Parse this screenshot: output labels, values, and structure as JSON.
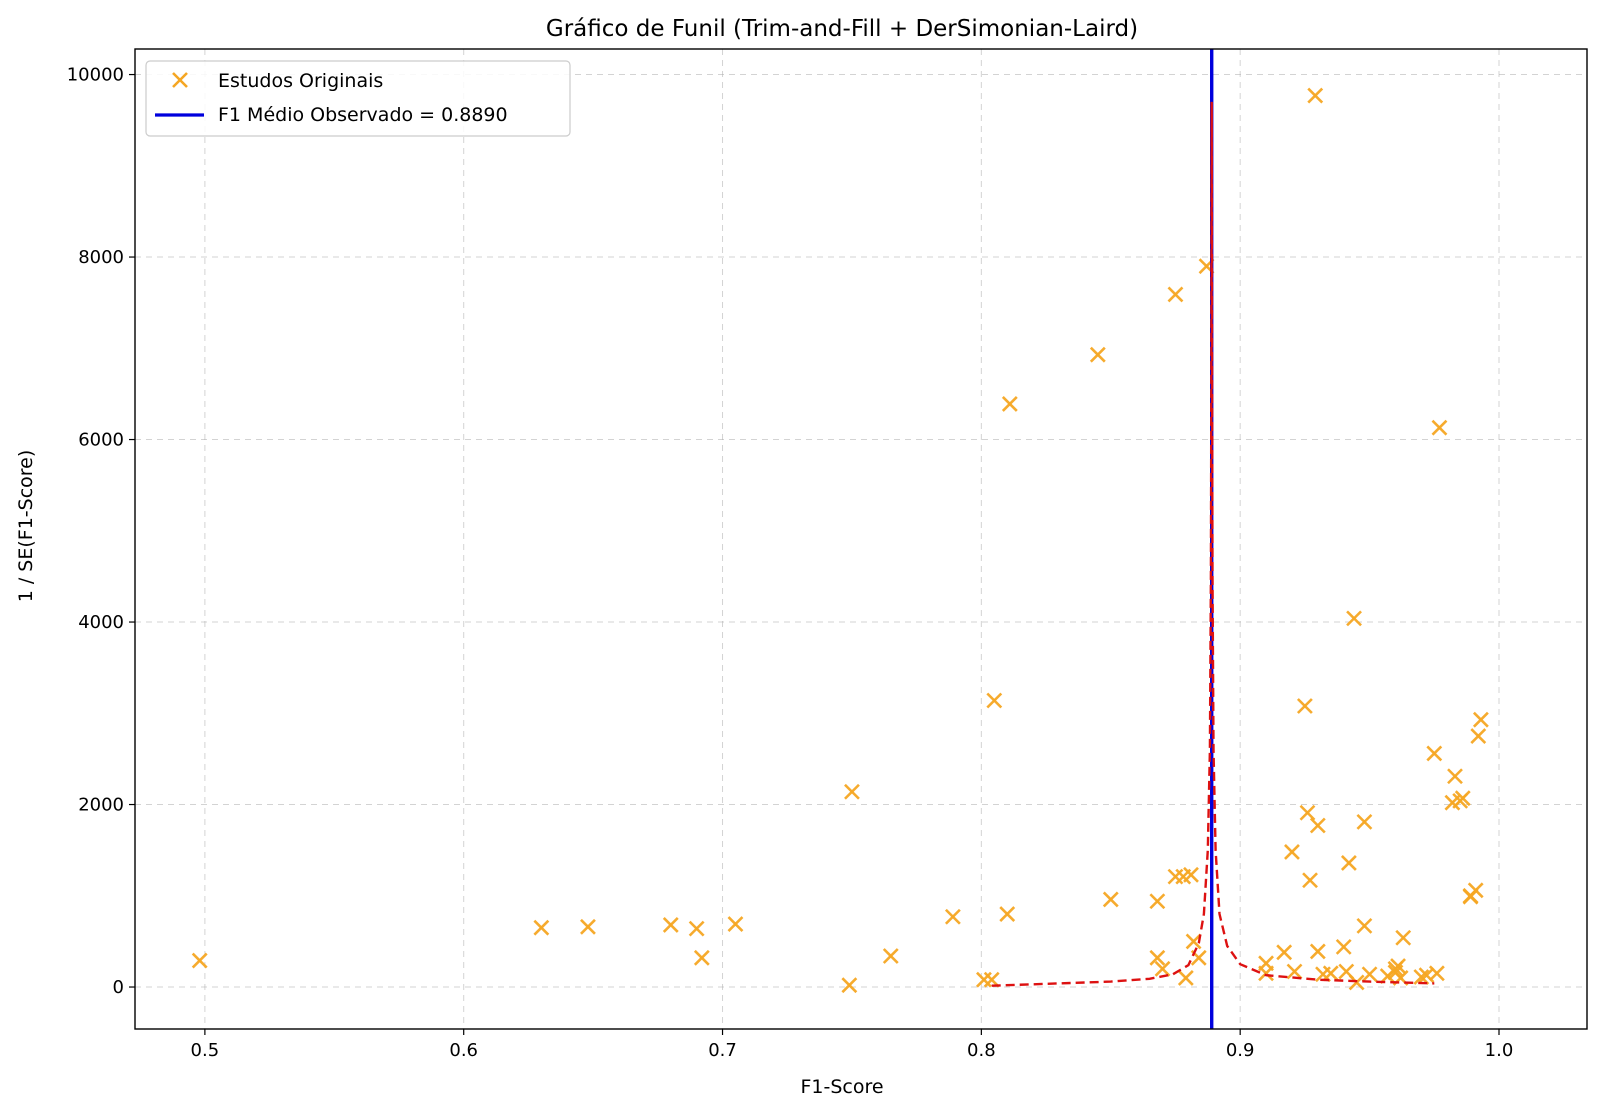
{
  "chart_data": {
    "type": "scatter",
    "title": "Gráfico de Funil (Trim-and-Fill + DerSimonian-Laird)",
    "xlabel": "F1-Score",
    "ylabel": "1 / SE(F1-Score)",
    "xlim": [
      0.473,
      1.034
    ],
    "ylim": [
      -460,
      10280
    ],
    "xticks": [
      0.5,
      0.6,
      0.7,
      0.8,
      0.9,
      1.0
    ],
    "xtick_labels": [
      "0.5",
      "0.6",
      "0.7",
      "0.8",
      "0.9",
      "1.0"
    ],
    "yticks": [
      0,
      2000,
      4000,
      6000,
      8000,
      10000
    ],
    "ytick_labels": [
      "0",
      "2000",
      "4000",
      "6000",
      "8000",
      "10000"
    ],
    "grid": true,
    "legend_position": "top-left",
    "colors": {
      "scatter": "#f5a623",
      "mean_line": "#0000dd",
      "funnel": "#dd1111"
    },
    "series": [
      {
        "name": "Estudos Originais",
        "kind": "scatter",
        "points": [
          [
            0.498,
            290
          ],
          [
            0.63,
            650
          ],
          [
            0.648,
            660
          ],
          [
            0.68,
            680
          ],
          [
            0.69,
            640
          ],
          [
            0.692,
            320
          ],
          [
            0.705,
            690
          ],
          [
            0.749,
            20
          ],
          [
            0.75,
            2140
          ],
          [
            0.765,
            340
          ],
          [
            0.789,
            770
          ],
          [
            0.801,
            80
          ],
          [
            0.804,
            80
          ],
          [
            0.805,
            3140
          ],
          [
            0.81,
            800
          ],
          [
            0.811,
            6390
          ],
          [
            0.845,
            6930
          ],
          [
            0.85,
            960
          ],
          [
            0.868,
            940
          ],
          [
            0.868,
            320
          ],
          [
            0.87,
            200
          ],
          [
            0.875,
            7590
          ],
          [
            0.875,
            1210
          ],
          [
            0.878,
            1210
          ],
          [
            0.879,
            100
          ],
          [
            0.881,
            1230
          ],
          [
            0.882,
            500
          ],
          [
            0.884,
            320
          ],
          [
            0.887,
            7900
          ],
          [
            0.91,
            260
          ],
          [
            0.91,
            150
          ],
          [
            0.917,
            380
          ],
          [
            0.92,
            1480
          ],
          [
            0.921,
            170
          ],
          [
            0.925,
            3080
          ],
          [
            0.926,
            1910
          ],
          [
            0.927,
            1170
          ],
          [
            0.929,
            9770
          ],
          [
            0.93,
            1770
          ],
          [
            0.93,
            390
          ],
          [
            0.932,
            140
          ],
          [
            0.935,
            150
          ],
          [
            0.94,
            440
          ],
          [
            0.941,
            170
          ],
          [
            0.942,
            1360
          ],
          [
            0.944,
            4040
          ],
          [
            0.945,
            50
          ],
          [
            0.948,
            670
          ],
          [
            0.948,
            1810
          ],
          [
            0.95,
            140
          ],
          [
            0.957,
            120
          ],
          [
            0.96,
            200
          ],
          [
            0.96,
            160
          ],
          [
            0.961,
            230
          ],
          [
            0.962,
            100
          ],
          [
            0.963,
            540
          ],
          [
            0.97,
            110
          ],
          [
            0.972,
            130
          ],
          [
            0.975,
            2560
          ],
          [
            0.976,
            150
          ],
          [
            0.977,
            6130
          ],
          [
            0.982,
            2020
          ],
          [
            0.983,
            2310
          ],
          [
            0.985,
            2040
          ],
          [
            0.986,
            2070
          ],
          [
            0.989,
            990
          ],
          [
            0.989,
            1000
          ],
          [
            0.991,
            1060
          ],
          [
            0.992,
            2750
          ],
          [
            0.993,
            2930
          ]
        ]
      },
      {
        "name": "F1 Médio Observado = 0.8890",
        "kind": "vline",
        "x": 0.889
      },
      {
        "name": "",
        "kind": "funnel-line",
        "center": 0.889,
        "points": [
          [
            0.804,
            15
          ],
          [
            0.83,
            40
          ],
          [
            0.85,
            60
          ],
          [
            0.865,
            90
          ],
          [
            0.874,
            140
          ],
          [
            0.88,
            240
          ],
          [
            0.884,
            480
          ],
          [
            0.886,
            800
          ],
          [
            0.8875,
            1500
          ],
          [
            0.8883,
            2600
          ],
          [
            0.8887,
            4500
          ],
          [
            0.8889,
            7000
          ],
          [
            0.889,
            9700
          ],
          [
            0.8891,
            7000
          ],
          [
            0.8893,
            4500
          ],
          [
            0.8897,
            2600
          ],
          [
            0.8905,
            1500
          ],
          [
            0.892,
            800
          ],
          [
            0.895,
            450
          ],
          [
            0.9,
            250
          ],
          [
            0.91,
            130
          ],
          [
            0.93,
            80
          ],
          [
            0.95,
            60
          ],
          [
            0.975,
            40
          ]
        ]
      }
    ]
  }
}
